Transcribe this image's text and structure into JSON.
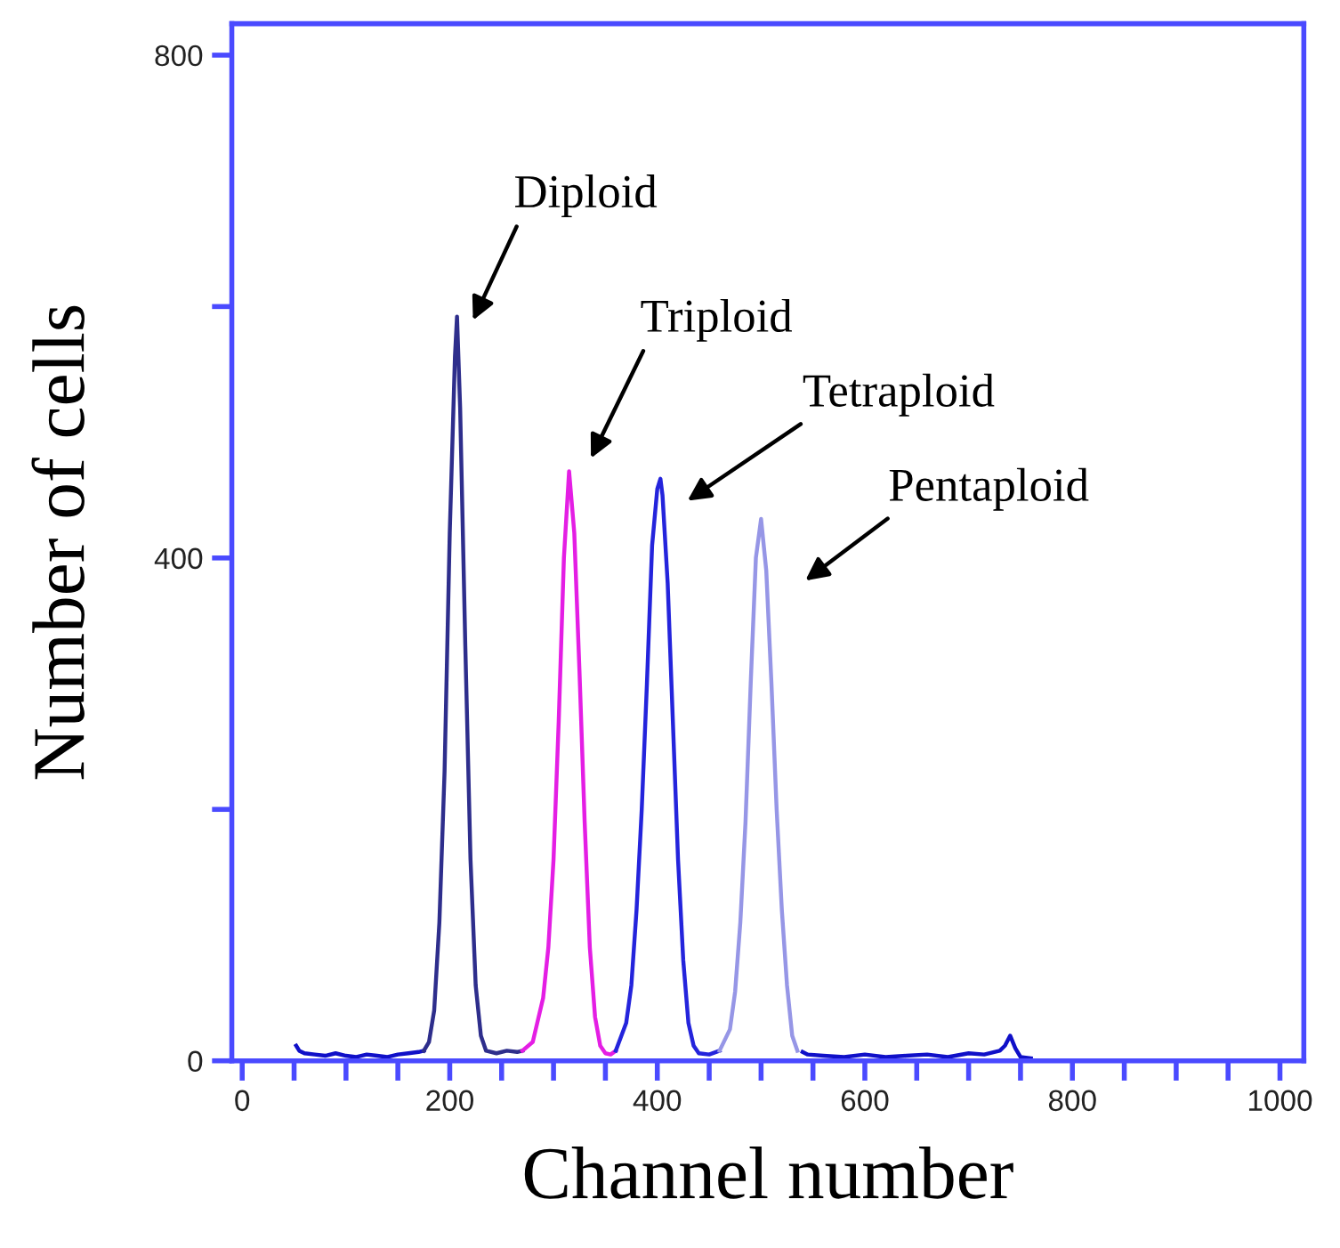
{
  "chart_data": {
    "type": "line",
    "xlabel": "Channel number",
    "ylabel": "Number of cells",
    "xlim": [
      -10,
      1023
    ],
    "ylim": [
      0,
      825
    ],
    "xticks": [
      0,
      {
        "value": 50,
        "label": null
      },
      {
        "value": 100,
        "label": null
      },
      {
        "value": 150,
        "label": null
      },
      200,
      {
        "value": 250,
        "label": null
      },
      {
        "value": 300,
        "label": null
      },
      {
        "value": 350,
        "label": null
      },
      400,
      {
        "value": 450,
        "label": null
      },
      {
        "value": 500,
        "label": null
      },
      {
        "value": 550,
        "label": null
      },
      600,
      {
        "value": 650,
        "label": null
      },
      {
        "value": 700,
        "label": null
      },
      {
        "value": 750,
        "label": null
      },
      800,
      {
        "value": 850,
        "label": null
      },
      {
        "value": 900,
        "label": null
      },
      {
        "value": 950,
        "label": null
      },
      1000
    ],
    "yticks": [
      0,
      {
        "value": 200,
        "label": null
      },
      400,
      {
        "value": 600,
        "label": null
      },
      800
    ],
    "grid": false,
    "legend": false,
    "marker": "none",
    "line_style": "solid",
    "series": [
      {
        "color": "#1010c8",
        "x": [
          52,
          55,
          60,
          70,
          80,
          90,
          100,
          110,
          120,
          130,
          140,
          150,
          160,
          170,
          175,
          300,
          540,
          545,
          560,
          580,
          600,
          620,
          640,
          660,
          680,
          700,
          715,
          730,
          735,
          740,
          745,
          750,
          760
        ],
        "values": [
          12,
          8,
          6,
          5,
          4,
          6,
          4,
          3,
          5,
          4,
          3,
          5,
          6,
          7,
          8,
          null,
          7,
          5,
          4,
          3,
          5,
          3,
          4,
          5,
          3,
          6,
          5,
          8,
          12,
          20,
          10,
          3,
          2
        ]
      },
      {
        "color": "#2e2e8c",
        "x": [
          175,
          180,
          185,
          190,
          195,
          200,
          205,
          207,
          210,
          215,
          220,
          225,
          230,
          235,
          245,
          255,
          265,
          270
        ],
        "values": [
          8,
          15,
          40,
          110,
          230,
          420,
          560,
          592,
          520,
          330,
          160,
          60,
          20,
          8,
          6,
          8,
          7,
          8
        ]
      },
      {
        "color": "#e41ee4",
        "x": [
          270,
          280,
          290,
          295,
          300,
          305,
          310,
          315,
          320,
          325,
          330,
          335,
          340,
          345,
          350,
          355,
          360
        ],
        "values": [
          8,
          15,
          50,
          90,
          160,
          270,
          400,
          469,
          420,
          310,
          190,
          90,
          35,
          12,
          6,
          5,
          8
        ]
      },
      {
        "color": "#2424dc",
        "x": [
          360,
          370,
          375,
          380,
          385,
          390,
          395,
          400,
          403,
          405,
          410,
          415,
          420,
          425,
          430,
          435,
          440,
          450,
          460
        ],
        "values": [
          8,
          30,
          60,
          120,
          200,
          300,
          410,
          455,
          463,
          450,
          380,
          270,
          160,
          80,
          30,
          12,
          6,
          5,
          8
        ]
      },
      {
        "color": "#9696e6",
        "x": [
          460,
          470,
          475,
          480,
          485,
          490,
          495,
          500,
          505,
          510,
          515,
          520,
          525,
          530,
          535
        ],
        "values": [
          8,
          25,
          55,
          110,
          190,
          300,
          400,
          431,
          390,
          300,
          200,
          120,
          60,
          20,
          8
        ]
      }
    ],
    "annotations": [
      "Diploid",
      "Triploid",
      "Tetraploid",
      "Pentaploid"
    ]
  }
}
